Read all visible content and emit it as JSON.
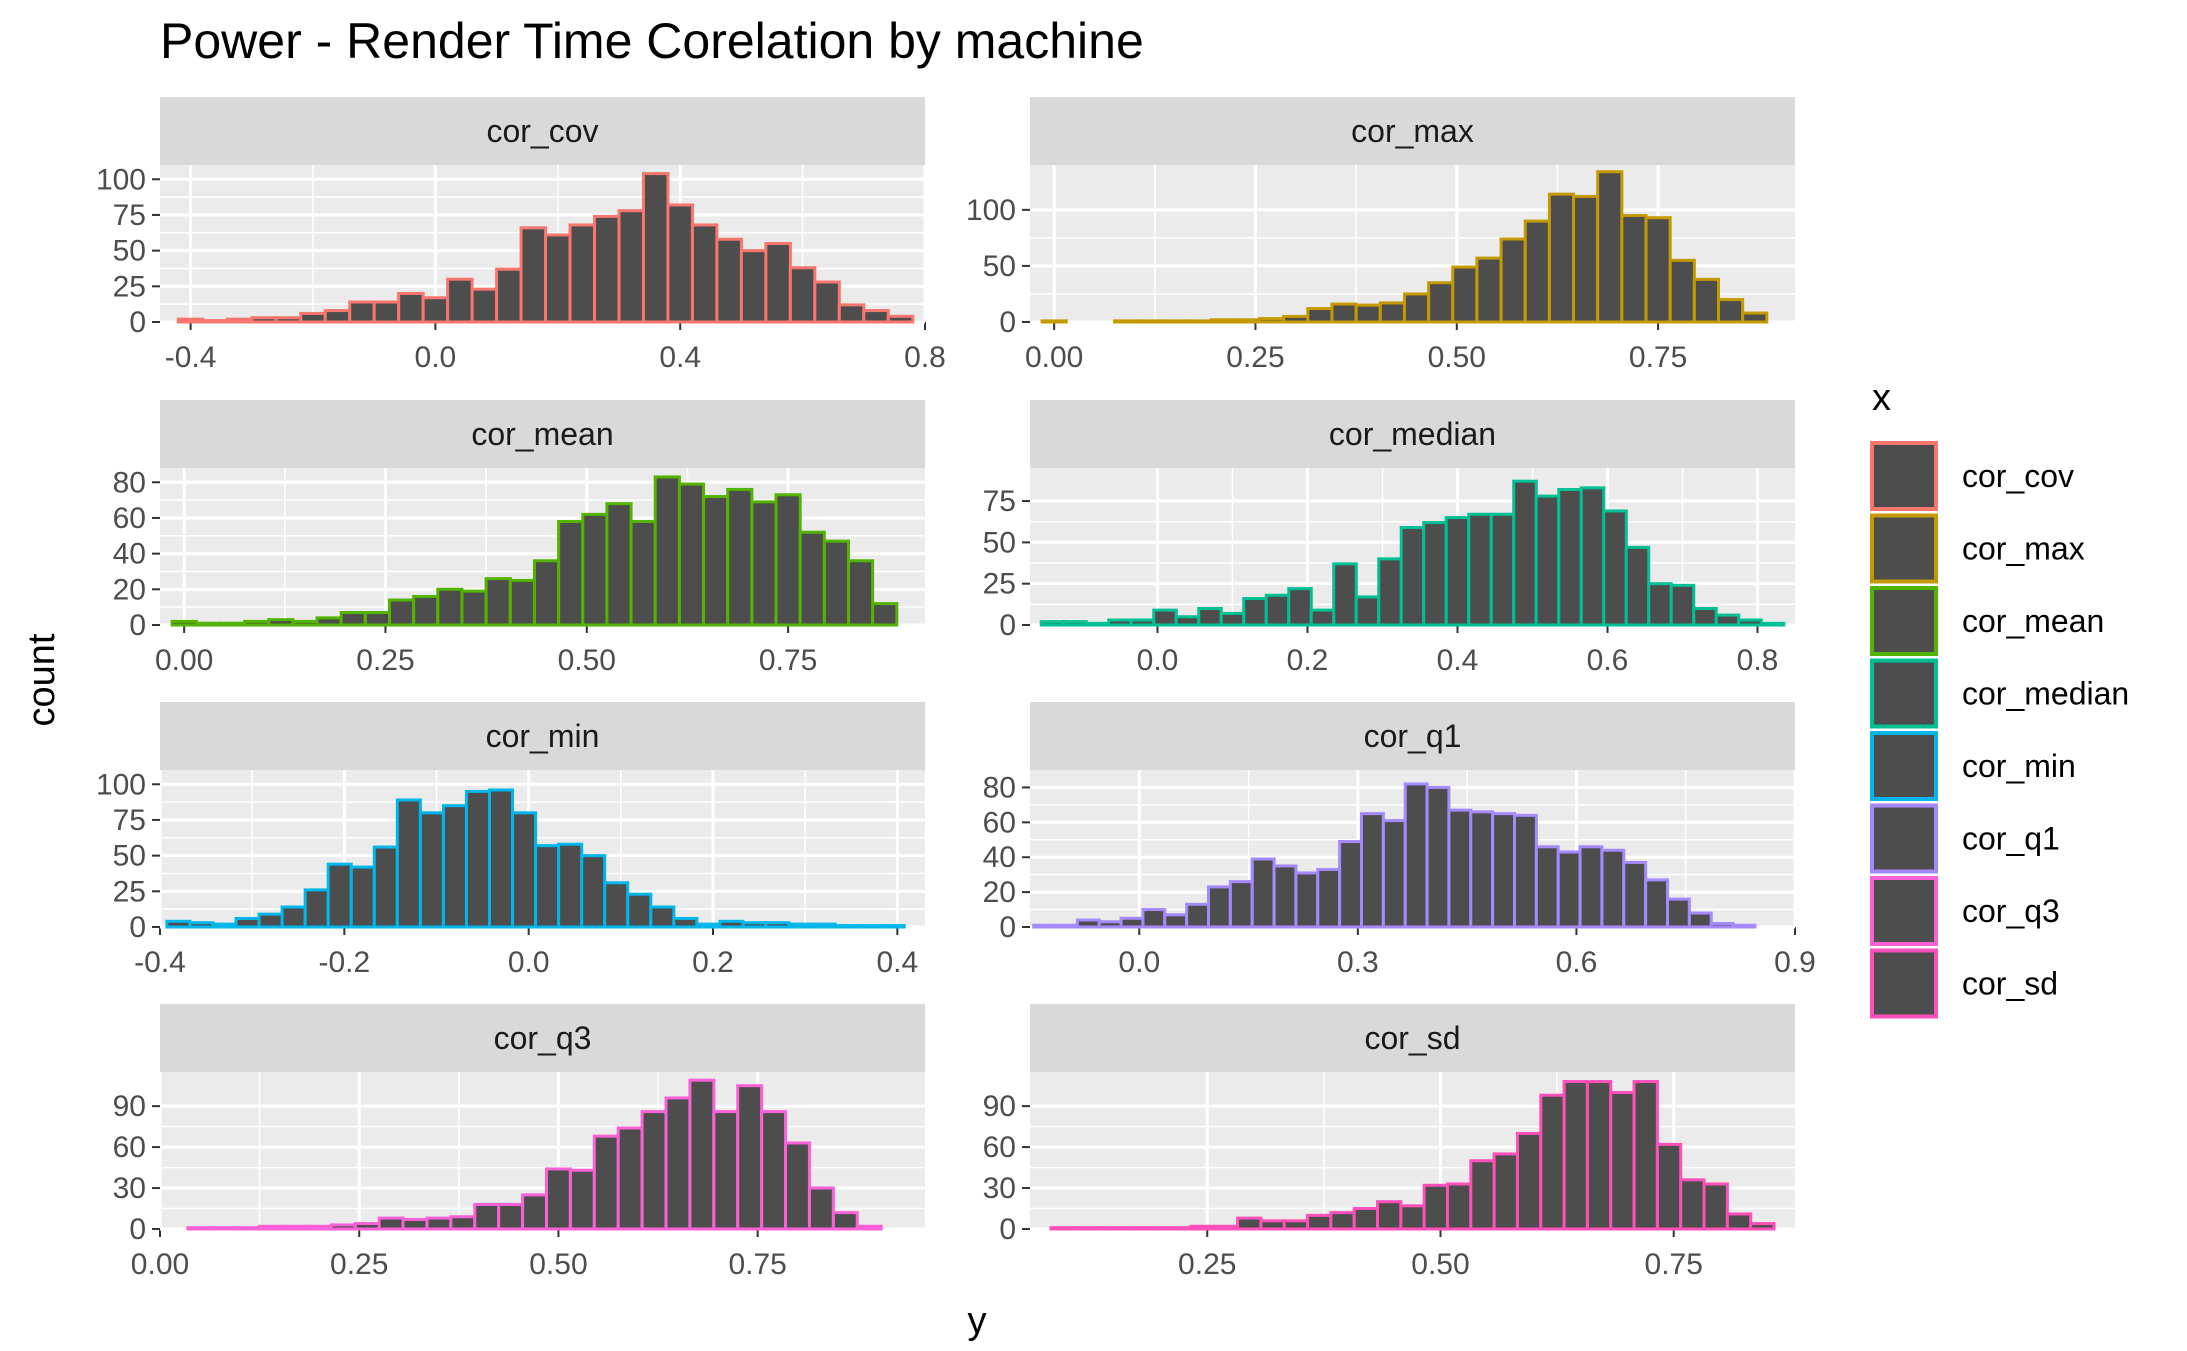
{
  "chart_data": {
    "type": "bar",
    "title": "Power - Render Time Corelation by machine",
    "xlabel": "y",
    "ylabel": "count",
    "legend": {
      "title": "x",
      "placement": "right",
      "entries": [
        "cor_cov",
        "cor_max",
        "cor_mean",
        "cor_median",
        "cor_min",
        "cor_q1",
        "cor_q3",
        "cor_sd"
      ]
    },
    "grid": true,
    "bar_fill": "#4d4d4d",
    "panel_background": "#ebebeb",
    "strip_background": "#d9d9d9",
    "facets": [
      {
        "name": "cor_cov",
        "color": "#F8766D",
        "xlim": [
          -0.45,
          0.8
        ],
        "ylim": [
          0,
          110
        ],
        "xticks": [
          -0.4,
          0.0,
          0.4,
          0.8
        ],
        "xtick_labels": [
          "-0.4",
          "0.0",
          "0.4",
          "0.8"
        ],
        "yticks": [
          0,
          25,
          50,
          75,
          100
        ],
        "ytick_labels": [
          "0",
          "25",
          "50",
          "75",
          "100"
        ],
        "x": [
          -0.4,
          -0.36,
          -0.32,
          -0.28,
          -0.24,
          -0.2,
          -0.16,
          -0.12,
          -0.08,
          -0.04,
          0.0,
          0.04,
          0.08,
          0.12,
          0.16,
          0.2,
          0.24,
          0.28,
          0.32,
          0.36,
          0.4,
          0.44,
          0.48,
          0.52,
          0.56,
          0.6,
          0.64,
          0.68,
          0.72,
          0.76
        ],
        "values": [
          2,
          1,
          2,
          3,
          3,
          6,
          8,
          14,
          14,
          20,
          17,
          30,
          23,
          37,
          66,
          61,
          68,
          74,
          78,
          104,
          82,
          68,
          58,
          50,
          55,
          38,
          28,
          12,
          8,
          4
        ]
      },
      {
        "name": "cor_max",
        "color": "#C49A00",
        "xlim": [
          -0.03,
          0.92
        ],
        "ylim": [
          0,
          140
        ],
        "xticks": [
          0.0,
          0.25,
          0.5,
          0.75
        ],
        "xtick_labels": [
          "0.00",
          "0.25",
          "0.50",
          "0.75"
        ],
        "yticks": [
          0,
          50,
          100
        ],
        "ytick_labels": [
          "0",
          "50",
          "100"
        ],
        "x": [
          0.0,
          0.03,
          0.06,
          0.09,
          0.12,
          0.15,
          0.18,
          0.21,
          0.24,
          0.27,
          0.3,
          0.33,
          0.36,
          0.39,
          0.42,
          0.45,
          0.48,
          0.51,
          0.54,
          0.57,
          0.6,
          0.63,
          0.66,
          0.69,
          0.72,
          0.75,
          0.78,
          0.81,
          0.84,
          0.87
        ],
        "values": [
          1,
          0,
          0,
          1,
          1,
          1,
          1,
          2,
          2,
          3,
          5,
          12,
          16,
          15,
          17,
          25,
          35,
          49,
          57,
          74,
          90,
          114,
          112,
          134,
          95,
          93,
          55,
          38,
          20,
          8
        ]
      },
      {
        "name": "cor_mean",
        "color": "#53B400",
        "xlim": [
          -0.03,
          0.92
        ],
        "ylim": [
          0,
          88
        ],
        "xticks": [
          0.0,
          0.25,
          0.5,
          0.75
        ],
        "xtick_labels": [
          "0.00",
          "0.25",
          "0.50",
          "0.75"
        ],
        "yticks": [
          0,
          20,
          40,
          60,
          80
        ],
        "ytick_labels": [
          "0",
          "20",
          "40",
          "60",
          "80"
        ],
        "x": [
          0.0,
          0.03,
          0.06,
          0.09,
          0.12,
          0.15,
          0.18,
          0.21,
          0.24,
          0.27,
          0.3,
          0.33,
          0.36,
          0.39,
          0.42,
          0.45,
          0.48,
          0.51,
          0.54,
          0.57,
          0.6,
          0.63,
          0.66,
          0.69,
          0.72,
          0.75,
          0.78,
          0.81,
          0.84,
          0.87
        ],
        "values": [
          2,
          1,
          1,
          2,
          3,
          2,
          4,
          7,
          7,
          14,
          16,
          20,
          19,
          26,
          25,
          36,
          58,
          62,
          68,
          58,
          83,
          79,
          72,
          76,
          69,
          73,
          52,
          47,
          36,
          12
        ]
      },
      {
        "name": "cor_median",
        "color": "#00C094",
        "xlim": [
          -0.17,
          0.85
        ],
        "ylim": [
          0,
          95
        ],
        "xticks": [
          0.0,
          0.2,
          0.4,
          0.6,
          0.8
        ],
        "xtick_labels": [
          "0.0",
          "0.2",
          "0.4",
          "0.6",
          "0.8"
        ],
        "yticks": [
          0,
          25,
          50,
          75
        ],
        "ytick_labels": [
          "0",
          "25",
          "50",
          "75"
        ],
        "x": [
          -0.14,
          -0.11,
          -0.08,
          -0.05,
          -0.02,
          0.01,
          0.04,
          0.07,
          0.1,
          0.13,
          0.16,
          0.19,
          0.22,
          0.25,
          0.28,
          0.31,
          0.34,
          0.37,
          0.4,
          0.43,
          0.46,
          0.49,
          0.52,
          0.55,
          0.58,
          0.61,
          0.64,
          0.67,
          0.7,
          0.73,
          0.76,
          0.79,
          0.82
        ],
        "values": [
          2,
          2,
          1,
          3,
          3,
          9,
          5,
          10,
          7,
          16,
          18,
          22,
          9,
          37,
          17,
          40,
          59,
          62,
          65,
          67,
          67,
          87,
          78,
          82,
          83,
          69,
          47,
          25,
          24,
          10,
          6,
          3,
          1
        ]
      },
      {
        "name": "cor_min",
        "color": "#00B6EB",
        "xlim": [
          -0.4,
          0.43
        ],
        "ylim": [
          0,
          110
        ],
        "xticks": [
          -0.4,
          -0.2,
          0.0,
          0.2,
          0.4
        ],
        "xtick_labels": [
          "-0.4",
          "-0.2",
          "0.0",
          "0.2",
          "0.4"
        ],
        "yticks": [
          0,
          25,
          50,
          75,
          100
        ],
        "ytick_labels": [
          "0",
          "25",
          "50",
          "75",
          "100"
        ],
        "x": [
          -0.38,
          -0.355,
          -0.33,
          -0.305,
          -0.28,
          -0.255,
          -0.23,
          -0.205,
          -0.18,
          -0.155,
          -0.13,
          -0.105,
          -0.08,
          -0.055,
          -0.03,
          -0.005,
          0.02,
          0.045,
          0.07,
          0.095,
          0.12,
          0.145,
          0.17,
          0.195,
          0.22,
          0.245,
          0.27,
          0.295,
          0.32,
          0.345,
          0.37,
          0.395
        ],
        "values": [
          4,
          3,
          2,
          6,
          9,
          14,
          26,
          44,
          42,
          56,
          89,
          80,
          85,
          95,
          96,
          80,
          57,
          58,
          50,
          31,
          23,
          14,
          6,
          2,
          4,
          3,
          3,
          2,
          2,
          1,
          1,
          1
        ]
      },
      {
        "name": "cor_q1",
        "color": "#A58AFF",
        "xlim": [
          -0.15,
          0.9
        ],
        "ylim": [
          0,
          90
        ],
        "xticks": [
          0.0,
          0.3,
          0.6,
          0.9
        ],
        "xtick_labels": [
          "0.0",
          "0.3",
          "0.6",
          "0.9"
        ],
        "yticks": [
          0,
          20,
          40,
          60,
          80
        ],
        "ytick_labels": [
          "0",
          "20",
          "40",
          "60",
          "80"
        ],
        "x": [
          -0.13,
          -0.1,
          -0.07,
          -0.04,
          -0.01,
          0.02,
          0.05,
          0.08,
          0.11,
          0.14,
          0.17,
          0.2,
          0.23,
          0.26,
          0.29,
          0.32,
          0.35,
          0.38,
          0.41,
          0.44,
          0.47,
          0.5,
          0.53,
          0.56,
          0.59,
          0.62,
          0.65,
          0.68,
          0.71,
          0.74,
          0.77,
          0.8,
          0.83
        ],
        "values": [
          1,
          1,
          4,
          3,
          5,
          10,
          7,
          13,
          23,
          26,
          39,
          35,
          31,
          33,
          49,
          65,
          61,
          82,
          80,
          67,
          66,
          65,
          64,
          46,
          43,
          46,
          44,
          37,
          27,
          16,
          8,
          2,
          1
        ]
      },
      {
        "name": "cor_q3",
        "color": "#FB61D7",
        "xlim": [
          0.0,
          0.96
        ],
        "ylim": [
          0,
          115
        ],
        "xticks": [
          0.0,
          0.25,
          0.5,
          0.75
        ],
        "xtick_labels": [
          "0.00",
          "0.25",
          "0.50",
          "0.75"
        ],
        "yticks": [
          0,
          30,
          60,
          90
        ],
        "ytick_labels": [
          "0",
          "30",
          "60",
          "90"
        ],
        "x": [
          0.05,
          0.08,
          0.11,
          0.14,
          0.17,
          0.2,
          0.23,
          0.26,
          0.29,
          0.32,
          0.35,
          0.38,
          0.41,
          0.44,
          0.47,
          0.5,
          0.53,
          0.56,
          0.59,
          0.62,
          0.65,
          0.68,
          0.71,
          0.74,
          0.77,
          0.8,
          0.83,
          0.86,
          0.89
        ],
        "values": [
          1,
          1,
          1,
          2,
          2,
          2,
          3,
          4,
          8,
          7,
          8,
          9,
          18,
          18,
          25,
          44,
          43,
          68,
          74,
          86,
          96,
          109,
          86,
          105,
          86,
          63,
          30,
          12,
          2
        ]
      },
      {
        "name": "cor_sd",
        "color": "#FF4FB8",
        "xlim": [
          0.06,
          0.88
        ],
        "ylim": [
          0,
          115
        ],
        "xticks": [
          0.25,
          0.5,
          0.75
        ],
        "xtick_labels": [
          "0.25",
          "0.50",
          "0.75"
        ],
        "yticks": [
          0,
          30,
          60,
          90
        ],
        "ytick_labels": [
          "0",
          "30",
          "60",
          "90"
        ],
        "x": [
          0.095,
          0.12,
          0.145,
          0.17,
          0.195,
          0.22,
          0.245,
          0.27,
          0.295,
          0.32,
          0.345,
          0.37,
          0.395,
          0.42,
          0.445,
          0.47,
          0.495,
          0.52,
          0.545,
          0.57,
          0.595,
          0.62,
          0.645,
          0.67,
          0.695,
          0.72,
          0.745,
          0.77,
          0.795,
          0.82,
          0.845
        ],
        "values": [
          1,
          1,
          1,
          1,
          1,
          1,
          2,
          2,
          8,
          6,
          6,
          10,
          12,
          15,
          20,
          17,
          32,
          33,
          50,
          55,
          70,
          98,
          108,
          108,
          100,
          108,
          62,
          36,
          33,
          11,
          4
        ]
      }
    ]
  }
}
